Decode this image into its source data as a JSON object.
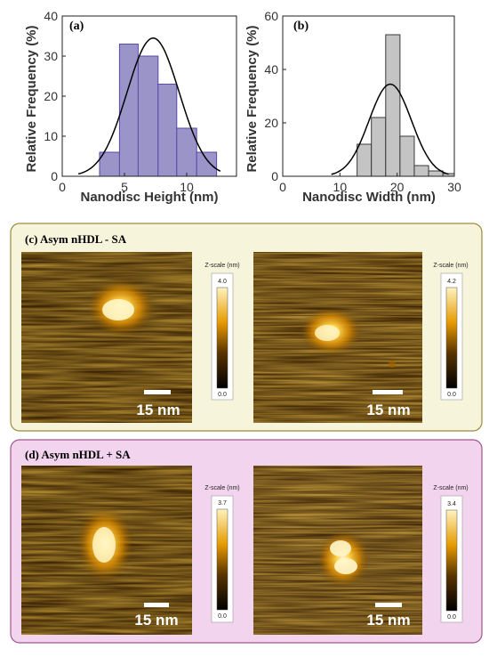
{
  "chart_data": [
    {
      "type": "bar",
      "panel_label": "(a)",
      "xlabel": "Nanodisc Height (nm)",
      "ylabel": "Relative Frequency (%)",
      "xlim": [
        0,
        14
      ],
      "ylim": [
        0,
        40
      ],
      "xticks": [
        "0",
        "5",
        "10"
      ],
      "yticks": [
        "0",
        "10",
        "20",
        "30",
        "40"
      ],
      "bins": [
        {
          "x0": 3.0,
          "x1": 4.6,
          "value": 6
        },
        {
          "x0": 4.6,
          "x1": 6.1,
          "value": 33
        },
        {
          "x0": 6.1,
          "x1": 7.7,
          "value": 30
        },
        {
          "x0": 7.7,
          "x1": 9.2,
          "value": 23
        },
        {
          "x0": 9.2,
          "x1": 10.8,
          "value": 12
        },
        {
          "x0": 10.8,
          "x1": 12.4,
          "value": 6
        }
      ],
      "fit": {
        "type": "gaussian",
        "mean": 7.3,
        "sd": 2.1,
        "peak": 34.5,
        "xrange": [
          1.3,
          12.7
        ]
      },
      "bar_color": "#9a94c8",
      "bar_edge": "#5b4aa6",
      "grid": false
    },
    {
      "type": "bar",
      "panel_label": "(b)",
      "xlabel": "Nanodisc Width (nm)",
      "ylabel": "Relative Frequency (%)",
      "xlim": [
        0,
        30
      ],
      "ylim": [
        0,
        60
      ],
      "xticks": [
        "0",
        "10",
        "20",
        "30"
      ],
      "yticks": [
        "0",
        "20",
        "40",
        "60"
      ],
      "bins": [
        {
          "x0": 13.0,
          "x1": 15.5,
          "value": 12
        },
        {
          "x0": 15.5,
          "x1": 18.0,
          "value": 22
        },
        {
          "x0": 18.0,
          "x1": 20.5,
          "value": 53
        },
        {
          "x0": 20.5,
          "x1": 23.0,
          "value": 15
        },
        {
          "x0": 23.0,
          "x1": 25.5,
          "value": 4
        },
        {
          "x0": 25.5,
          "x1": 28.0,
          "value": 2
        },
        {
          "x0": 28.0,
          "x1": 30.0,
          "value": 1
        }
      ],
      "fit": {
        "type": "gaussian",
        "mean": 18.8,
        "sd": 3.7,
        "peak": 34.5,
        "xrange": [
          8.5,
          29.0
        ]
      },
      "bar_color": "#c4c4c4",
      "bar_edge": "#3a3a3a",
      "grid": false
    }
  ],
  "panels": {
    "c": {
      "title": "(c) Asym nHDL - SA",
      "bg": "#f7f4dc",
      "border": "#9b8a3d",
      "images": [
        {
          "scale_label": "15 nm",
          "zscale_title": "Z-scale (nm)",
          "zmax": "4.0",
          "zmin": "0.0"
        },
        {
          "scale_label": "15 nm",
          "zscale_title": "Z-scale (nm)",
          "zmax": "4.2",
          "zmin": "0.0"
        }
      ]
    },
    "d": {
      "title": "(d) Asym nHDL + SA",
      "bg": "#f3d4ee",
      "border": "#a0558f",
      "images": [
        {
          "scale_label": "15 nm",
          "zscale_title": "Z-scale (nm)",
          "zmax": "3.7",
          "zmin": "0.0"
        },
        {
          "scale_label": "15 nm",
          "zscale_title": "Z-scale (nm)",
          "zmax": "3.4",
          "zmin": "0.0"
        }
      ]
    }
  }
}
